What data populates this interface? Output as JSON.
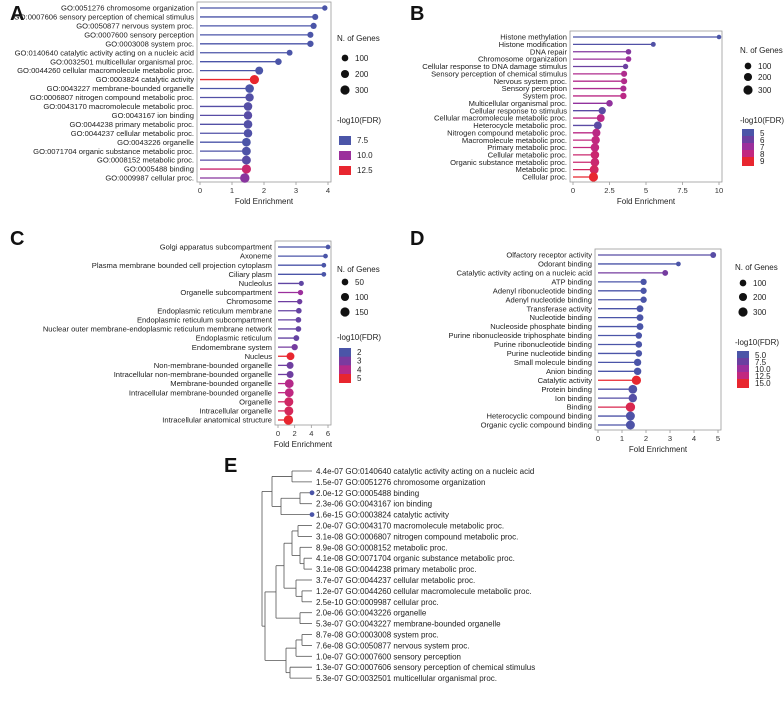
{
  "colors": {
    "low": "#4b55a8",
    "mid1": "#6b3fa0",
    "mid2": "#9b2f9c",
    "mid3": "#c2287f",
    "high": "#e8262f",
    "axis": "#999999",
    "tree": "#555555"
  },
  "chart_data": [
    {
      "id": "A",
      "type": "lollipop",
      "xlabel": "Fold Enrichment",
      "xlim": [
        0,
        4
      ],
      "xticks": [
        0,
        1,
        2,
        3,
        4
      ],
      "size_title": "N. of Genes",
      "size_levels": [
        100,
        200,
        300
      ],
      "color_title": "-log10(FDR)",
      "color_levels": [
        7.5,
        10.0,
        12.5
      ],
      "categories": [
        "GO:0051276 chromosome organization",
        "GO:0007606 sensory perception of chemical stimulus",
        "GO:0050877 nervous system proc.",
        "GO:0007600 sensory perception",
        "GO:0003008 system proc.",
        "GO:0140640 catalytic activity acting on a nucleic acid",
        "GO:0032501 multicellular organismal proc.",
        "GO:0044260 cellular macromolecule metabolic proc.",
        "GO:0003824 catalytic activity",
        "GO:0043227 membrane-bounded organelle",
        "GO:0006807 nitrogen compound metabolic proc.",
        "GO:0043170 macromolecule metabolic proc.",
        "GO:0043167 ion binding",
        "GO:0044238 primary metabolic proc.",
        "GO:0044237 cellular metabolic proc.",
        "GO:0043226 organelle",
        "GO:0071704 organic substance metabolic proc.",
        "GO:0008152 metabolic proc.",
        "GO:0005488 binding",
        "GO:0009987 cellular proc."
      ],
      "values": [
        3.9,
        3.6,
        3.55,
        3.45,
        3.45,
        2.8,
        2.45,
        1.85,
        1.7,
        1.55,
        1.55,
        1.5,
        1.5,
        1.5,
        1.5,
        1.45,
        1.45,
        1.45,
        1.45,
        1.4
      ],
      "fdr": [
        6.5,
        6.7,
        6.6,
        6.5,
        6.6,
        7.0,
        6.4,
        7.2,
        14.5,
        7.1,
        7.8,
        7.9,
        8.0,
        7.8,
        7.7,
        6.9,
        7.6,
        8.0,
        11.5,
        9.5
      ],
      "genes": [
        40,
        70,
        75,
        70,
        85,
        60,
        95,
        190,
        300,
        250,
        220,
        240,
        230,
        250,
        240,
        250,
        260,
        270,
        300,
        320
      ]
    },
    {
      "id": "B",
      "type": "lollipop",
      "xlabel": "Fold Enrichment",
      "xlim": [
        0,
        10
      ],
      "xticks": [
        0.0,
        2.5,
        5.0,
        7.5,
        10.0
      ],
      "size_title": "N. of Genes",
      "size_levels": [
        100,
        200,
        300
      ],
      "color_title": "-log10(FDR)",
      "color_levels": [
        5,
        6,
        7,
        8,
        9
      ],
      "categories": [
        "Histone methylation",
        "Histone modification",
        "DNA repair",
        "Chromosome organization",
        "Cellular response to DNA damage stimulus",
        "Sensory perception of chemical stimulus",
        "Nervous system proc.",
        "Sensory perception",
        "System proc.",
        "Multicellular organismal proc.",
        "Cellular response to stimulus",
        "Cellular macromolecule metabolic proc.",
        "Heterocycle metabolic proc.",
        "Nitrogen compound metabolic proc.",
        "Macromolecule metabolic proc.",
        "Primary metabolic proc.",
        "Cellular metabolic proc.",
        "Organic substance metabolic proc.",
        "Metabolic proc.",
        "Cellular proc."
      ],
      "values": [
        10.0,
        5.5,
        3.8,
        3.8,
        3.6,
        3.5,
        3.5,
        3.45,
        3.45,
        2.5,
        2.0,
        1.9,
        1.7,
        1.6,
        1.55,
        1.5,
        1.5,
        1.5,
        1.45,
        1.4
      ],
      "fdr": [
        5.0,
        5.2,
        6.5,
        7.0,
        6.0,
        7.5,
        7.6,
        7.4,
        7.8,
        6.8,
        5.5,
        7.8,
        5.5,
        7.8,
        8.0,
        8.0,
        8.2,
        8.2,
        8.4,
        9.0
      ],
      "genes": [
        15,
        25,
        45,
        50,
        40,
        70,
        75,
        70,
        85,
        95,
        140,
        180,
        180,
        210,
        230,
        240,
        240,
        250,
        270,
        300
      ]
    },
    {
      "id": "C",
      "type": "lollipop",
      "xlabel": "Fold Enrichment",
      "xlim": [
        0,
        6
      ],
      "xticks": [
        0,
        2,
        4,
        6
      ],
      "size_title": "N. of Genes",
      "size_levels": [
        50,
        100,
        150
      ],
      "color_title": "-log10(FDR)",
      "color_levels": [
        2,
        3,
        4,
        5
      ],
      "categories": [
        "Golgi apparatus subcompartment",
        "Axoneme",
        "Plasma membrane bounded cell projection cytoplasm",
        "Ciliary plasm",
        "Nucleolus",
        "Organelle subcompartment",
        "Chromosome",
        "Endoplasmic reticulum membrane",
        "Endoplasmic reticulum subcompartment",
        "Nuclear outer membrane-endoplasmic reticulum membrane network",
        "Endoplasmic reticulum",
        "Endomembrane system",
        "Nucleus",
        "Non-membrane-bounded organelle",
        "Intracellular non-membrane-bounded organelle",
        "Membrane-bounded organelle",
        "Intracellular membrane-bounded organelle",
        "Organelle",
        "Intracellular organelle",
        "Intracellular anatomical structure"
      ],
      "values": [
        6.0,
        5.7,
        5.5,
        5.5,
        2.8,
        2.7,
        2.6,
        2.5,
        2.45,
        2.45,
        2.2,
        2.0,
        1.5,
        1.45,
        1.45,
        1.35,
        1.35,
        1.3,
        1.3,
        1.25
      ],
      "fdr": [
        1.8,
        1.9,
        2.0,
        2.0,
        2.5,
        3.5,
        2.8,
        2.6,
        2.6,
        2.6,
        2.6,
        2.9,
        5.0,
        2.8,
        2.8,
        4.0,
        4.2,
        4.5,
        4.6,
        5.0
      ],
      "genes": [
        10,
        10,
        10,
        10,
        15,
        20,
        20,
        25,
        25,
        25,
        30,
        40,
        90,
        60,
        60,
        130,
        130,
        140,
        140,
        160
      ]
    },
    {
      "id": "D",
      "type": "lollipop",
      "xlabel": "Fold Enrichment",
      "xlim": [
        0,
        5
      ],
      "xticks": [
        0,
        1,
        2,
        3,
        4,
        5
      ],
      "size_title": "N. of Genes",
      "size_levels": [
        100,
        200,
        300
      ],
      "color_title": "-log10(FDR)",
      "color_levels": [
        5.0,
        7.5,
        10.0,
        12.5,
        15.0
      ],
      "categories": [
        "Olfactory receptor activity",
        "Odorant binding",
        "Catalytic activity acting on a nucleic acid",
        "ATP binding",
        "Adenyl ribonucleotide binding",
        "Adenyl nucleotide binding",
        "Transferase activity",
        "Nucleotide binding",
        "Nucleoside phosphate binding",
        "Purine ribonucleoside triphosphate binding",
        "Purine ribonucleotide binding",
        "Purine nucleotide binding",
        "Small molecule binding",
        "Anion binding",
        "Catalytic activity",
        "Protein binding",
        "Ion binding",
        "Binding",
        "Heterocyclic compound binding",
        "Organic cyclic compound binding"
      ],
      "values": [
        4.8,
        3.35,
        2.8,
        1.9,
        1.9,
        1.9,
        1.75,
        1.75,
        1.75,
        1.7,
        1.7,
        1.7,
        1.65,
        1.65,
        1.6,
        1.45,
        1.45,
        1.35,
        1.35,
        1.35
      ],
      "fdr": [
        6.0,
        5.0,
        8.0,
        5.0,
        5.0,
        5.0,
        5.0,
        5.0,
        5.0,
        5.0,
        5.0,
        5.0,
        5.0,
        5.0,
        15.0,
        5.5,
        5.8,
        14.0,
        5.2,
        5.2
      ],
      "genes": [
        60,
        20,
        60,
        80,
        80,
        85,
        110,
        110,
        110,
        90,
        95,
        100,
        140,
        150,
        300,
        260,
        230,
        320,
        280,
        280
      ]
    },
    {
      "id": "E",
      "type": "tree",
      "labels": [
        "4.4e-07 GO:0140640 catalytic activity acting on a nucleic acid",
        "1.5e-07 GO:0051276 chromosome organization",
        "2.0e-12 GO:0005488 binding",
        "2.3e-06 GO:0043167 ion binding",
        "1.6e-15 GO:0003824 catalytic activity",
        "2.0e-07 GO:0043170 macromolecule metabolic proc.",
        "3.1e-08 GO:0006807 nitrogen compound metabolic proc.",
        "8.9e-08 GO:0008152 metabolic proc.",
        "4.1e-08 GO:0071704 organic substance metabolic proc.",
        "3.1e-08 GO:0044238 primary metabolic proc.",
        "3.7e-07 GO:0044237 cellular metabolic proc.",
        "1.2e-07 GO:0044260 cellular macromolecule metabolic proc.",
        "2.5e-10 GO:0009987 cellular proc.",
        "2.0e-06 GO:0043226 organelle",
        "5.3e-07 GO:0043227 membrane-bounded organelle",
        "8.7e-08 GO:0003008 system proc.",
        "7.6e-08 GO:0050877 nervous system proc.",
        "1.0e-07 GO:0007600 sensory perception",
        "1.3e-07 GO:0007606 sensory perception of chemical stimulus",
        "5.3e-07 GO:0032501 multicellular organismal proc."
      ],
      "tip_dots": [
        2,
        4
      ]
    }
  ]
}
